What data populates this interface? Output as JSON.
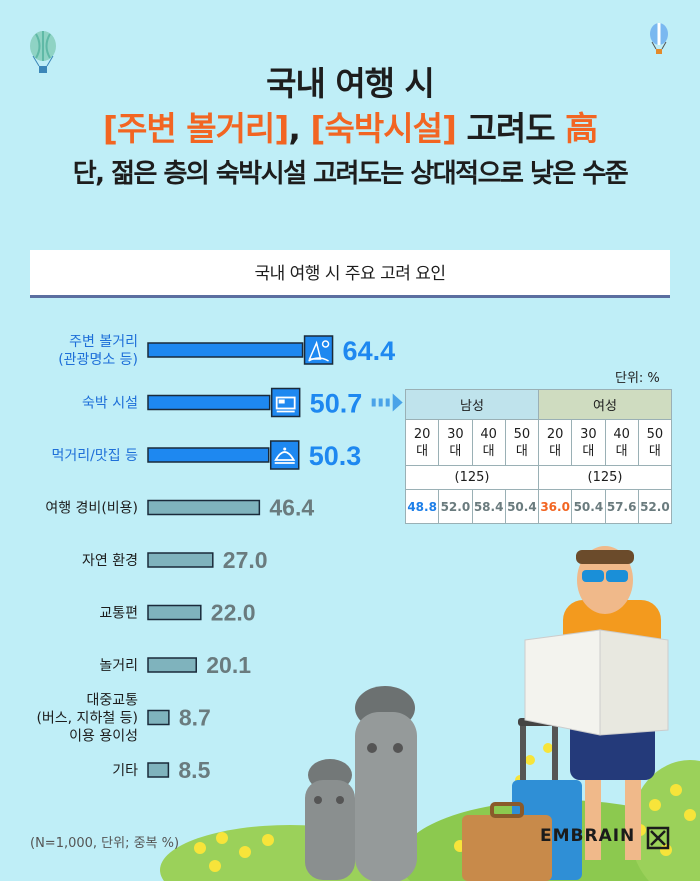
{
  "header": {
    "line1": "국내 여행 시",
    "line2_hl1": "[주변 볼거리]",
    "line2_sep": ", ",
    "line2_hl2": "[숙박시설]",
    "line2_mid": " 고려도 ",
    "line2_hl3": "高",
    "line3": "단, 젊은 층의 숙박시설 고려도는 상대적으로 낮은 수준"
  },
  "chart_data": {
    "type": "bar",
    "title": "국내 여행 시 주요 고려 요인",
    "categories": [
      [
        "주변 볼거리",
        "(관광명소 등)"
      ],
      [
        "숙박 시설"
      ],
      [
        "먹거리/맛집 등"
      ],
      [
        "여행 경비(비용)"
      ],
      [
        "자연 환경"
      ],
      [
        "교통편"
      ],
      [
        "놀거리"
      ],
      [
        "대중교통",
        "(버스, 지하철 등)",
        "이용 용이성"
      ],
      [
        "기타"
      ]
    ],
    "values": [
      64.4,
      50.7,
      50.3,
      46.4,
      27.0,
      22.0,
      20.1,
      8.7,
      8.5
    ],
    "value_labels": [
      "64.4",
      "50.7",
      "50.3",
      "46.4",
      "27.0",
      "22.0",
      "20.1",
      "8.7",
      "8.5"
    ],
    "highlight_count": 3,
    "colors": {
      "highlight": "#1e88f0",
      "normal": "#7fb3bd",
      "highlight_label": "#1e88f0",
      "normal_label": "#6a7b7e",
      "highlight_text": "#1e6fd8"
    },
    "icons": [
      "beach-icon",
      "bed-icon",
      "cloche-icon"
    ],
    "xlim": [
      0,
      100
    ]
  },
  "breakdown": {
    "unit": "단위: %",
    "groups": [
      {
        "name": "남성",
        "n": "(125)",
        "ages": [
          "20\n대",
          "30\n대",
          "40\n대",
          "50\n대"
        ],
        "values": [
          "48.8",
          "52.0",
          "58.4",
          "50.4"
        ],
        "highlight_index": 0,
        "highlight_color": "#1d7fe8"
      },
      {
        "name": "여성",
        "n": "(125)",
        "ages": [
          "20\n대",
          "30\n대",
          "40\n대",
          "50\n대"
        ],
        "values": [
          "36.0",
          "50.4",
          "57.6",
          "52.0"
        ],
        "highlight_index": 0,
        "highlight_color": "#f26522"
      }
    ]
  },
  "footer": {
    "note": "(N=1,000, 단위; 중복 %)",
    "brand": "EMBRAIN"
  }
}
